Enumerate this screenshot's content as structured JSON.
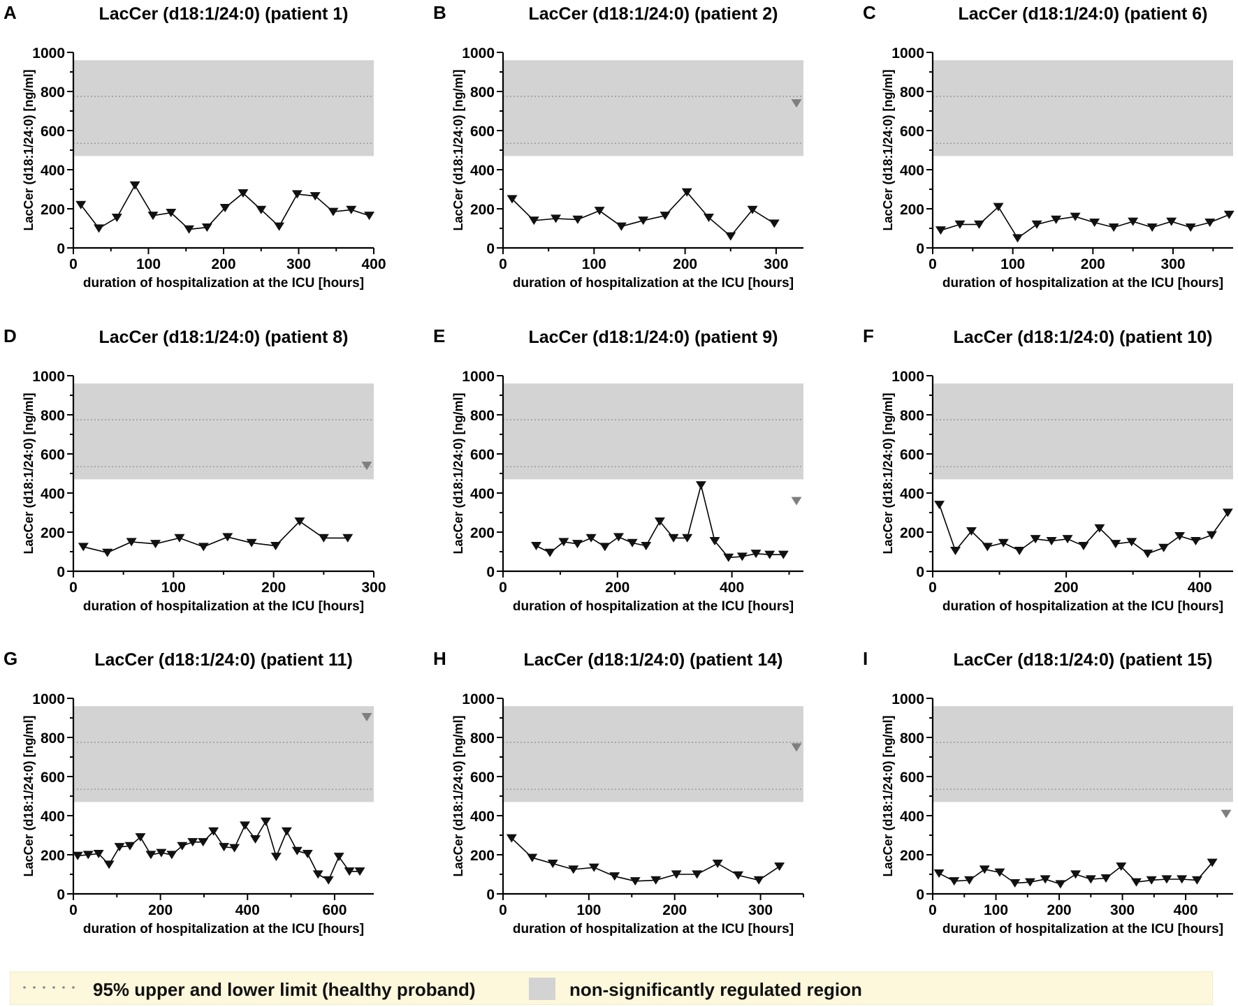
{
  "colors": {
    "band": "#d3d3d3",
    "line": "#000000",
    "marker": "#111111",
    "marker_ref": "#7f7f7f",
    "limit_line": "#8a8a8a",
    "legend_bg": "#fdf7dc"
  },
  "legend": {
    "limit_label": "95% upper and lower limit (healthy proband)",
    "region_label": "non-significantly regulated region"
  },
  "chart_data": [
    {
      "panel": "A",
      "type": "line",
      "title": "LacCer (d18:1/24:0) (patient 1)",
      "xlabel": "duration of hospitalization at the ICU [hours]",
      "ylabel": "LacCer (d18:1/24:0) [ng/ml]",
      "xlim": [
        0,
        400
      ],
      "ylim": [
        0,
        1000
      ],
      "xticks": [
        0,
        100,
        200,
        300,
        400
      ],
      "yticks": [
        0,
        200,
        400,
        600,
        800,
        1000
      ],
      "band": [
        470,
        960
      ],
      "limits": [
        535,
        775
      ],
      "reference": null,
      "x": [
        10,
        34,
        58,
        82,
        106,
        130,
        154,
        178,
        202,
        226,
        250,
        274,
        298,
        322,
        346,
        370,
        394
      ],
      "y": [
        220,
        100,
        155,
        320,
        165,
        180,
        95,
        105,
        205,
        280,
        195,
        110,
        275,
        265,
        185,
        195,
        165
      ]
    },
    {
      "panel": "B",
      "type": "line",
      "title": "LacCer (d18:1/24:0) (patient 2)",
      "xlabel": "duration of hospitalization at the ICU [hours]",
      "ylabel": "LacCer (d18:1/24:0) [ng/ml]",
      "xlim": [
        0,
        330
      ],
      "ylim": [
        0,
        1000
      ],
      "xticks": [
        0,
        100,
        200,
        300
      ],
      "yticks": [
        0,
        200,
        400,
        600,
        800,
        1000
      ],
      "band": [
        470,
        960
      ],
      "limits": [
        535,
        775
      ],
      "reference": 740,
      "x": [
        10,
        34,
        58,
        82,
        106,
        130,
        154,
        178,
        202,
        226,
        250,
        274,
        298
      ],
      "y": [
        250,
        140,
        150,
        145,
        190,
        110,
        140,
        165,
        285,
        155,
        60,
        195,
        125
      ]
    },
    {
      "panel": "C",
      "type": "line",
      "title": "LacCer (d18:1/24:0) (patient 6)",
      "xlabel": "duration of hospitalization at the ICU [hours]",
      "ylabel": "LacCer (d18:1/24:0) [ng/ml]",
      "xlim": [
        0,
        375
      ],
      "ylim": [
        0,
        1000
      ],
      "xticks": [
        0,
        100,
        200,
        300
      ],
      "yticks": [
        0,
        200,
        400,
        600,
        800,
        1000
      ],
      "band": [
        470,
        960
      ],
      "limits": [
        535,
        775
      ],
      "reference": null,
      "x": [
        10,
        34,
        58,
        82,
        106,
        130,
        154,
        178,
        202,
        226,
        250,
        274,
        298,
        322,
        346,
        370
      ],
      "y": [
        90,
        120,
        120,
        210,
        50,
        120,
        145,
        160,
        130,
        105,
        135,
        105,
        135,
        105,
        130,
        170
      ]
    },
    {
      "panel": "D",
      "type": "line",
      "title": "LacCer (d18:1/24:0) (patient 8)",
      "xlabel": "duration of hospitalization at the ICU [hours]",
      "ylabel": "LacCer (d18:1/24:0) [ng/ml]",
      "xlim": [
        0,
        300
      ],
      "ylim": [
        0,
        1000
      ],
      "xticks": [
        0,
        100,
        200,
        300
      ],
      "yticks": [
        0,
        200,
        400,
        600,
        800,
        1000
      ],
      "band": [
        470,
        960
      ],
      "limits": [
        535,
        775
      ],
      "reference": 540,
      "x": [
        10,
        34,
        58,
        82,
        106,
        130,
        154,
        178,
        202,
        226,
        250,
        274
      ],
      "y": [
        125,
        95,
        150,
        140,
        170,
        125,
        175,
        145,
        130,
        255,
        170,
        170
      ]
    },
    {
      "panel": "E",
      "type": "line",
      "title": "LacCer (d18:1/24:0) (patient 9)",
      "xlabel": "duration of hospitalization at the ICU [hours]",
      "ylabel": "LacCer (d18:1/24:0) [ng/ml]",
      "xlim": [
        0,
        525
      ],
      "ylim": [
        0,
        1000
      ],
      "xticks": [
        0,
        200,
        400
      ],
      "yticks": [
        0,
        200,
        400,
        600,
        800,
        1000
      ],
      "band": [
        470,
        960
      ],
      "limits": [
        535,
        775
      ],
      "reference": 360,
      "x": [
        58,
        82,
        106,
        130,
        154,
        178,
        202,
        226,
        250,
        274,
        298,
        322,
        346,
        370,
        394,
        418,
        442,
        466,
        490
      ],
      "y": [
        130,
        95,
        150,
        140,
        170,
        125,
        175,
        145,
        130,
        255,
        170,
        170,
        440,
        155,
        70,
        75,
        90,
        85,
        85
      ]
    },
    {
      "panel": "F",
      "type": "line",
      "title": "LacCer (d18:1/24:0) (patient 10)",
      "xlabel": "duration of hospitalization at the ICU [hours]",
      "ylabel": "LacCer (d18:1/24:0) [ng/ml]",
      "xlim": [
        0,
        450
      ],
      "ylim": [
        0,
        1000
      ],
      "xticks": [
        0,
        200,
        400
      ],
      "yticks": [
        0,
        200,
        400,
        600,
        800,
        1000
      ],
      "band": [
        470,
        960
      ],
      "limits": [
        535,
        775
      ],
      "reference": null,
      "x": [
        10,
        34,
        58,
        82,
        106,
        130,
        154,
        178,
        202,
        226,
        250,
        274,
        298,
        322,
        346,
        370,
        394,
        418,
        442
      ],
      "y": [
        340,
        105,
        205,
        125,
        145,
        105,
        165,
        155,
        165,
        130,
        220,
        140,
        150,
        90,
        120,
        180,
        155,
        185,
        300
      ]
    },
    {
      "panel": "G",
      "type": "line",
      "title": "LacCer (d18:1/24:0) (patient 11)",
      "xlabel": "duration of hospitalization at the ICU [hours]",
      "ylabel": "LacCer (d18:1/24:0) [ng/ml]",
      "xlim": [
        0,
        690
      ],
      "ylim": [
        0,
        1000
      ],
      "xticks": [
        0,
        200,
        400,
        600
      ],
      "yticks": [
        0,
        200,
        400,
        600,
        800,
        1000
      ],
      "band": [
        470,
        960
      ],
      "limits": [
        535,
        775
      ],
      "reference": 905,
      "x": [
        10,
        34,
        58,
        82,
        106,
        130,
        154,
        178,
        202,
        226,
        250,
        274,
        298,
        322,
        346,
        370,
        394,
        418,
        442,
        466,
        490,
        514,
        538,
        562,
        586,
        610,
        634,
        658
      ],
      "y": [
        195,
        200,
        205,
        150,
        240,
        245,
        290,
        200,
        210,
        200,
        245,
        265,
        265,
        320,
        240,
        235,
        350,
        280,
        370,
        190,
        320,
        220,
        205,
        100,
        70,
        190,
        115,
        115
      ]
    },
    {
      "panel": "H",
      "type": "line",
      "title": "LacCer (d18:1/24:0) (patient 14)",
      "xlabel": "duration of hospitalization at the ICU [hours]",
      "ylabel": "LacCer (d18:1/24:0) [ng/ml]",
      "xlim": [
        0,
        350
      ],
      "ylim": [
        0,
        1000
      ],
      "xticks": [
        0,
        100,
        200,
        300
      ],
      "yticks": [
        0,
        200,
        400,
        600,
        800,
        1000
      ],
      "band": [
        470,
        960
      ],
      "limits": [
        535,
        775
      ],
      "reference": 750,
      "x": [
        10,
        34,
        58,
        82,
        106,
        130,
        154,
        178,
        202,
        226,
        250,
        274,
        298,
        322
      ],
      "y": [
        285,
        185,
        155,
        125,
        135,
        90,
        65,
        70,
        100,
        100,
        155,
        95,
        70,
        140
      ]
    },
    {
      "panel": "I",
      "type": "line",
      "title": "LacCer (d18:1/24:0) (patient 15)",
      "xlabel": "duration of hospitalization at the ICU [hours]",
      "ylabel": "LacCer (d18:1/24:0) [ng/ml]",
      "xlim": [
        0,
        475
      ],
      "ylim": [
        0,
        1000
      ],
      "xticks": [
        0,
        100,
        200,
        300,
        400
      ],
      "yticks": [
        0,
        200,
        400,
        600,
        800,
        1000
      ],
      "band": [
        470,
        960
      ],
      "limits": [
        535,
        775
      ],
      "reference": 410,
      "x": [
        10,
        34,
        58,
        82,
        106,
        130,
        154,
        178,
        202,
        226,
        250,
        274,
        298,
        322,
        346,
        370,
        394,
        418,
        442
      ],
      "y": [
        105,
        65,
        70,
        125,
        110,
        55,
        60,
        75,
        50,
        100,
        75,
        80,
        140,
        60,
        70,
        75,
        75,
        70,
        160
      ]
    }
  ]
}
